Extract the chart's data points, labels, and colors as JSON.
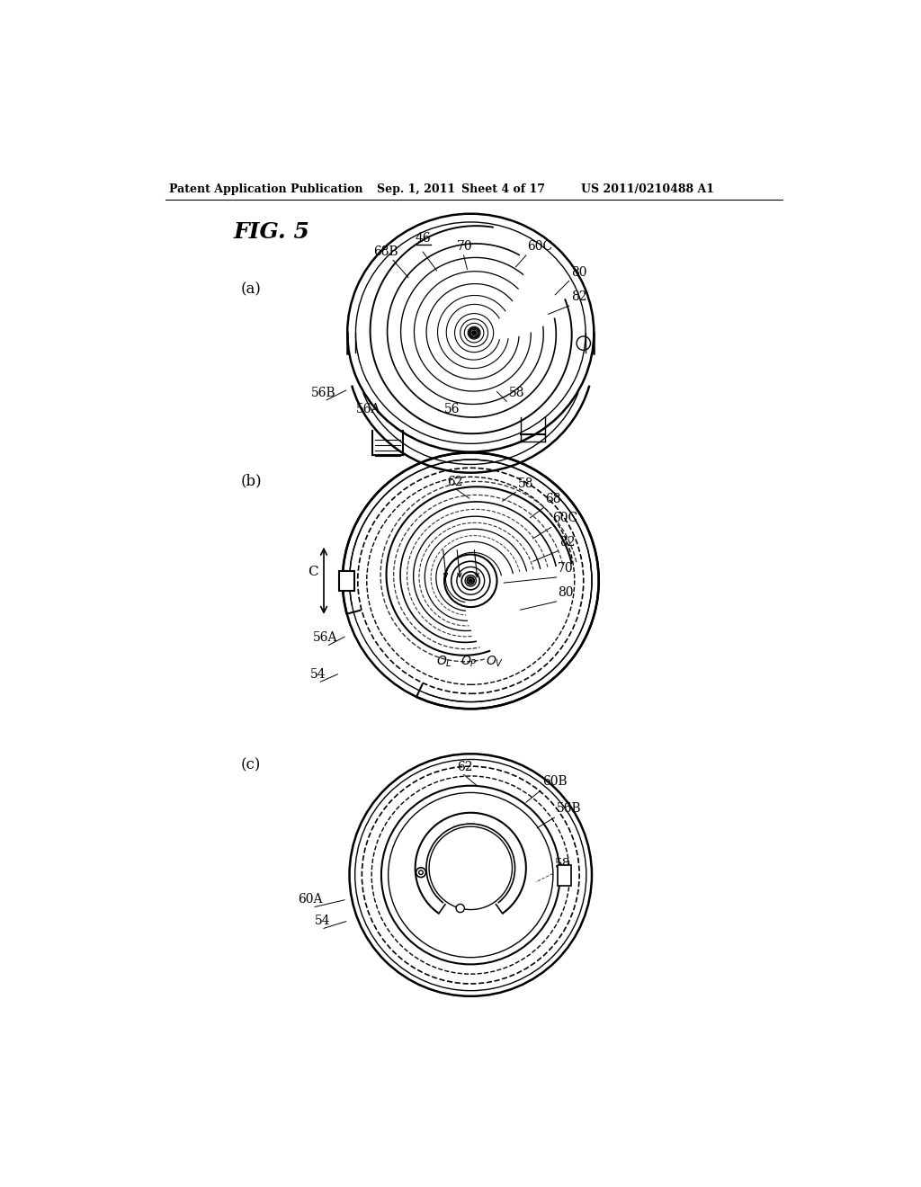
{
  "bg_color": "#ffffff",
  "line_color": "#000000",
  "header_text": "Patent Application Publication",
  "header_date": "Sep. 1, 2011",
  "header_sheet": "Sheet 4 of 17",
  "header_patent": "US 2011/0210488 A1",
  "fig_label": "FIG. 5",
  "panel_a_label": "(a)",
  "panel_b_label": "(b)",
  "panel_c_label": "(c)"
}
